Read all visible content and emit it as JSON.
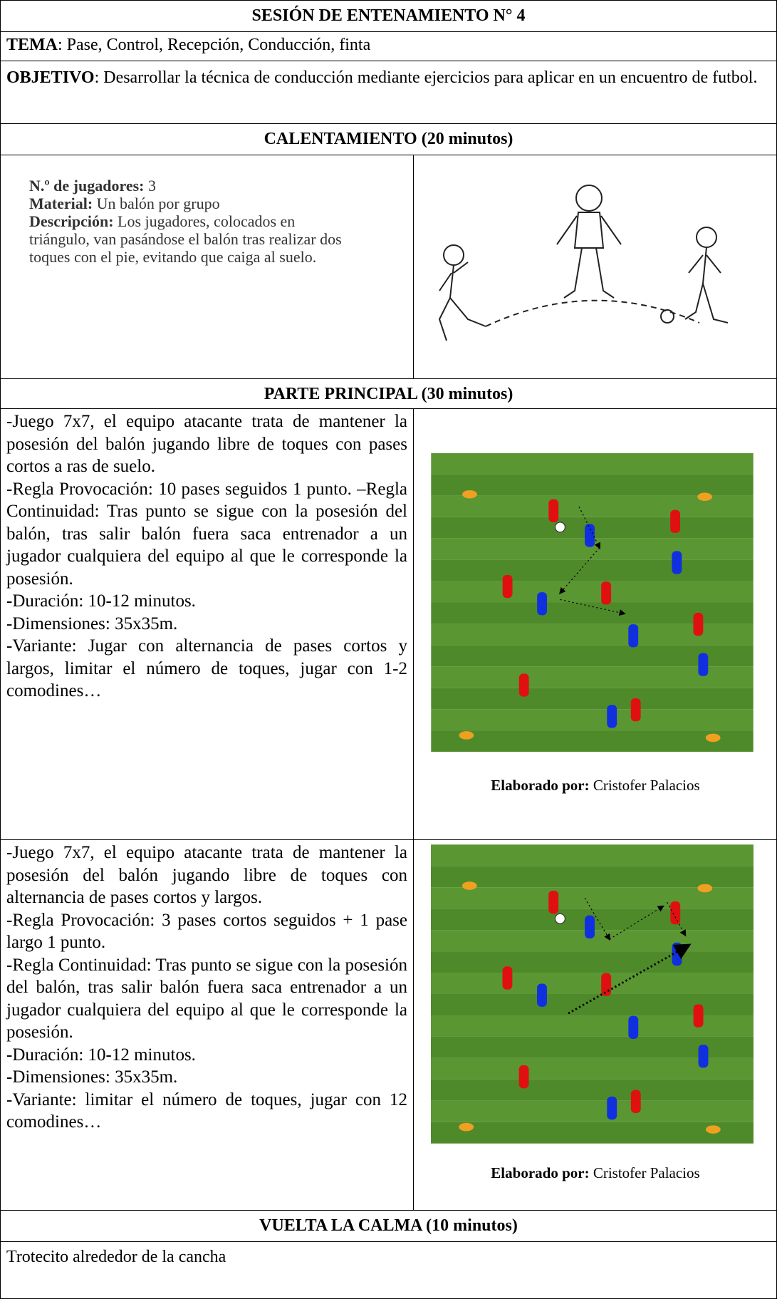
{
  "header": {
    "title": "SESIÓN DE ENTENAMIENTO N° 4"
  },
  "tema": {
    "label": "TEMA",
    "text": ": Pase, Control, Recepción, Conducción, finta"
  },
  "objetivo": {
    "label": "OBJETIVO",
    "text": ": Desarrollar la técnica de conducción mediante ejercicios para aplicar en un encuentro de futbol."
  },
  "warmup": {
    "heading": "CALENTAMIENTO (20 minutos)",
    "players_label": "N.º de jugadores:",
    "players_text": "3",
    "material_label": "Material:",
    "material_text": "Un balón por grupo",
    "description_label": "Descripción:",
    "description_text": "Los jugadores, colocados en triángulo, van pasándose el balón tras realizar dos toques con el pie, evitando que caiga al suelo."
  },
  "main": {
    "heading": "PARTE PRINCIPAL (30 minutos)",
    "drills": [
      {
        "paragraphs": [
          "-Juego 7x7, el equipo atacante trata de mantener la posesión del balón jugando libre de toques con pases cortos a ras de suelo.",
          "-Regla Provocación: 10 pases seguidos 1 punto. –Regla Continuidad: Tras punto se sigue con la  posesión del balón, tras salir balón fuera saca entrenador a un jugador cualquiera del equipo al que le corresponde la posesión.",
          "-Duración: 10-12 minutos.",
          "-Dimensiones: 35x35m.",
          "-Variante: Jugar con alternancia de pases cortos y largos, limitar el número de toques, jugar con 1-2 comodines…"
        ],
        "caption_label": "Elaborado por:",
        "caption_text": "Cristofer Palacios"
      },
      {
        "paragraphs": [
          "-Juego 7x7, el equipo atacante trata de mantener la posesión del balón jugando libre de toques con alternancia de pases cortos y largos.",
          "-Regla Provocación: 3 pases cortos seguidos  + 1 pase largo 1 punto.",
          "-Regla Continuidad: Tras punto se sigue con la posesión del balón, tras salir balón fuera saca entrenador a un jugador cualquiera del equipo al que le corresponde la posesión.",
          "-Duración: 10-12 minutos.",
          "-Dimensiones: 35x35m.",
          "-Variante: limitar el número de toques, jugar con 12 comodines…"
        ],
        "caption_label": "Elaborado por:",
        "caption_text": "Cristofer Palacios"
      }
    ]
  },
  "cooldown": {
    "heading": "VUELTA LA CALMA (10 minutos)",
    "text": "Trotecito alrededor de la cancha"
  }
}
